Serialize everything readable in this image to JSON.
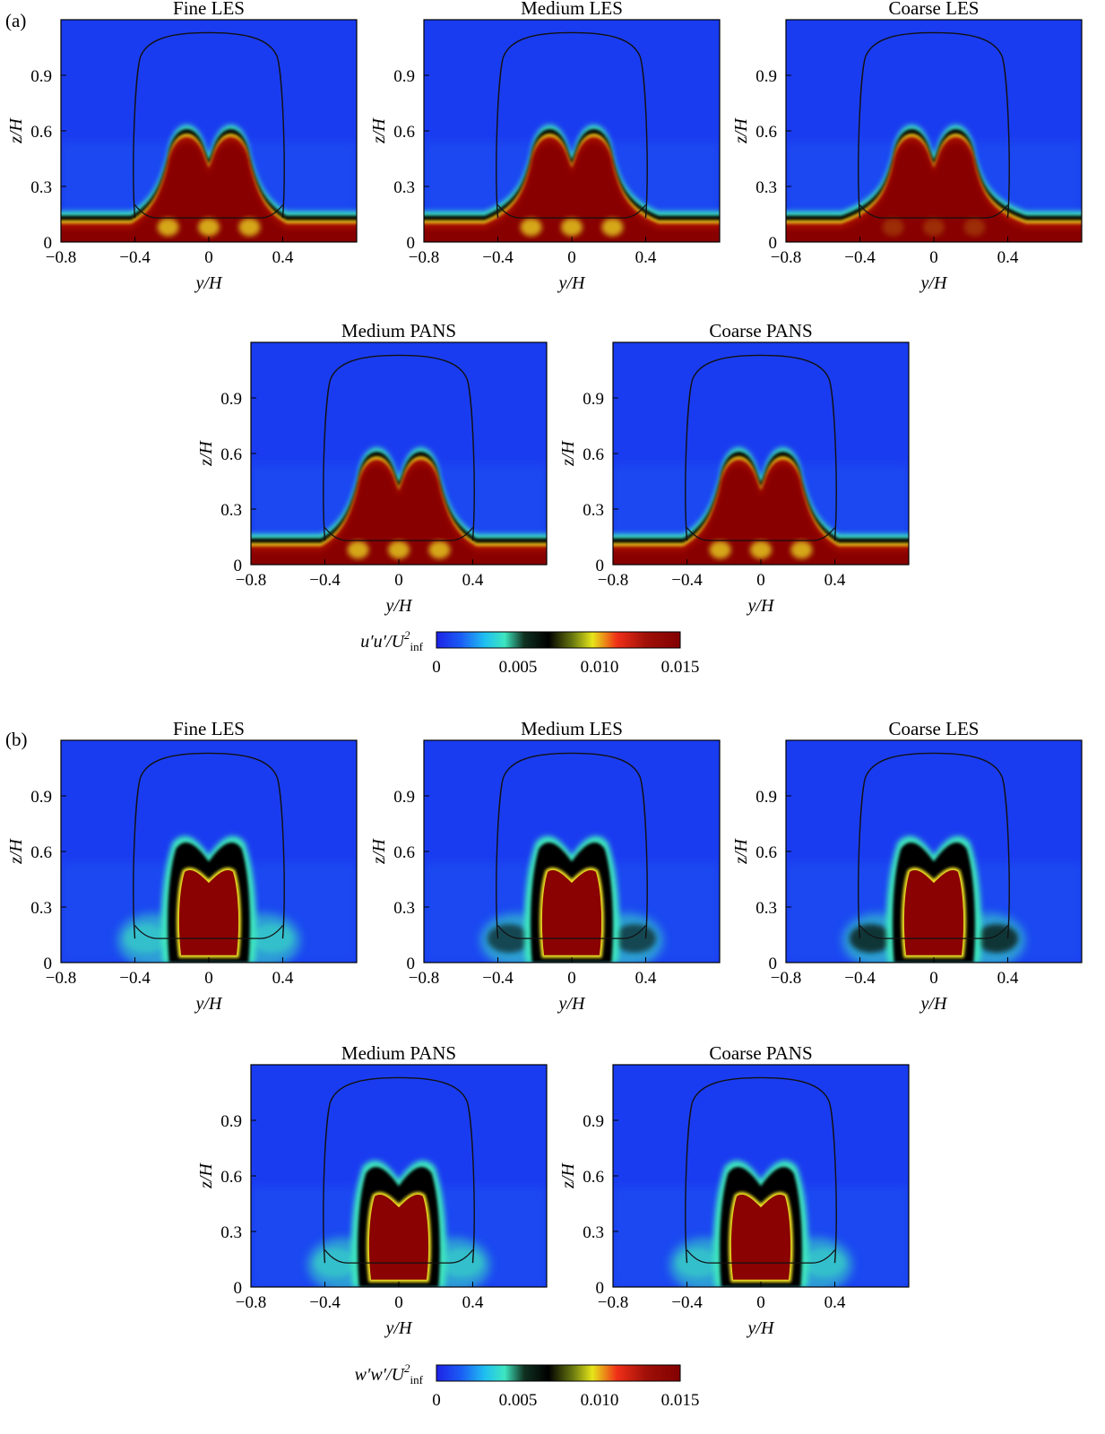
{
  "panels": [
    {
      "label": "(a)",
      "colorbar": {
        "label_main": "u′u′/U",
        "label_sup": "2",
        "label_sub": "inf",
        "ticks": [
          "0",
          "0.005",
          "0.010",
          "0.015"
        ]
      },
      "titles": [
        "Fine LES",
        "Medium LES",
        "Coarse LES",
        "Medium PANS",
        "Coarse PANS"
      ]
    },
    {
      "label": "(b)",
      "colorbar": {
        "label_main": "w′w′/U",
        "label_sup": "2",
        "label_sub": "inf",
        "ticks": [
          "0",
          "0.005",
          "0.010",
          "0.015"
        ]
      },
      "titles": [
        "Fine LES",
        "Medium LES",
        "Coarse LES",
        "Medium PANS",
        "Coarse PANS"
      ]
    }
  ],
  "axes": {
    "xlabel": "y/H",
    "ylabel": "z/H",
    "xticks": [
      "−0.8",
      "−0.4",
      "0",
      "0.4"
    ],
    "yticks": [
      "0",
      "0.3",
      "0.6",
      "0.9"
    ]
  },
  "colors": {
    "background": "#1a3cf0",
    "colormap": [
      "#1e22e6",
      "#1a5cf5",
      "#20c0f0",
      "#3ee6c0",
      "#103020",
      "#000000",
      "#6a7a10",
      "#e6e619",
      "#f03018",
      "#a01008",
      "#820000"
    ]
  },
  "chart_data": [
    {
      "type": "heatmap",
      "title": "Fine LES",
      "quantity": "u′u′/U2inf",
      "xlabel": "y/H",
      "ylabel": "z/H",
      "xlim": [
        -0.8,
        0.8
      ],
      "ylim": [
        0,
        1.2
      ],
      "clim": [
        0,
        0.015
      ]
    },
    {
      "type": "heatmap",
      "title": "Medium LES",
      "quantity": "u′u′/U2inf",
      "xlabel": "y/H",
      "ylabel": "z/H",
      "xlim": [
        -0.8,
        0.8
      ],
      "ylim": [
        0,
        1.2
      ],
      "clim": [
        0,
        0.015
      ]
    },
    {
      "type": "heatmap",
      "title": "Coarse LES",
      "quantity": "u′u′/U2inf",
      "xlabel": "y/H",
      "ylabel": "z/H",
      "xlim": [
        -0.8,
        0.8
      ],
      "ylim": [
        0,
        1.2
      ],
      "clim": [
        0,
        0.015
      ]
    },
    {
      "type": "heatmap",
      "title": "Medium PANS",
      "quantity": "u′u′/U2inf",
      "xlabel": "y/H",
      "ylabel": "z/H",
      "xlim": [
        -0.8,
        0.8
      ],
      "ylim": [
        0,
        1.2
      ],
      "clim": [
        0,
        0.015
      ]
    },
    {
      "type": "heatmap",
      "title": "Coarse PANS",
      "quantity": "u′u′/U2inf",
      "xlabel": "y/H",
      "ylabel": "z/H",
      "xlim": [
        -0.8,
        0.8
      ],
      "ylim": [
        0,
        1.2
      ],
      "clim": [
        0,
        0.015
      ]
    },
    {
      "type": "heatmap",
      "title": "Fine LES",
      "quantity": "w′w′/U2inf",
      "xlabel": "y/H",
      "ylabel": "z/H",
      "xlim": [
        -0.8,
        0.8
      ],
      "ylim": [
        0,
        1.2
      ],
      "clim": [
        0,
        0.015
      ]
    },
    {
      "type": "heatmap",
      "title": "Medium LES",
      "quantity": "w′w′/U2inf",
      "xlabel": "y/H",
      "ylabel": "z/H",
      "xlim": [
        -0.8,
        0.8
      ],
      "ylim": [
        0,
        1.2
      ],
      "clim": [
        0,
        0.015
      ]
    },
    {
      "type": "heatmap",
      "title": "Coarse LES",
      "quantity": "w′w′/U2inf",
      "xlabel": "y/H",
      "ylabel": "z/H",
      "xlim": [
        -0.8,
        0.8
      ],
      "ylim": [
        0,
        1.2
      ],
      "clim": [
        0,
        0.015
      ]
    },
    {
      "type": "heatmap",
      "title": "Medium PANS",
      "quantity": "w′w′/U2inf",
      "xlabel": "y/H",
      "ylabel": "z/H",
      "xlim": [
        -0.8,
        0.8
      ],
      "ylim": [
        0,
        1.2
      ],
      "clim": [
        0,
        0.015
      ]
    },
    {
      "type": "heatmap",
      "title": "Coarse PANS",
      "quantity": "w′w′/U2inf",
      "xlabel": "y/H",
      "ylabel": "z/H",
      "xlim": [
        -0.8,
        0.8
      ],
      "ylim": [
        0,
        1.2
      ],
      "clim": [
        0,
        0.015
      ]
    }
  ]
}
